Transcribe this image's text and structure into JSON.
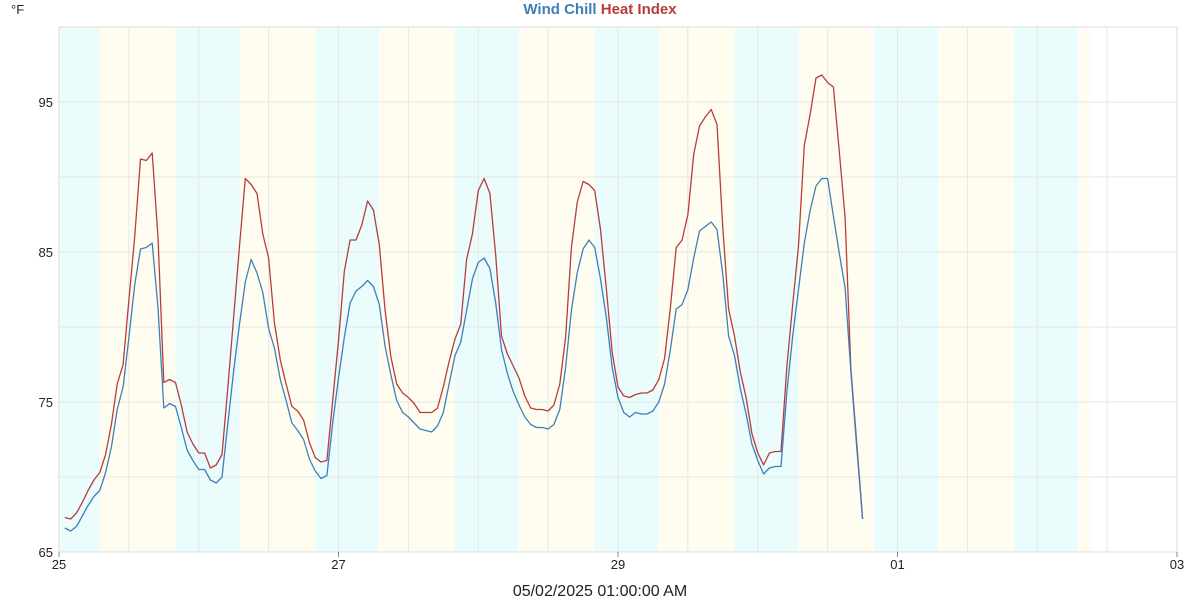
{
  "header": {
    "unit": "°F",
    "footer_text": "05/02/2025 01:00:00 AM"
  },
  "colors": {
    "wind_chill": "#3f7fb8",
    "heat_index": "#b83c3c",
    "day_band": "#fffdf0",
    "night_band": "#ebfcfd",
    "grid": "#e6e6e6"
  },
  "chart_data": {
    "type": "line",
    "title_parts": [
      {
        "text": "Wind Chill",
        "color": "#3f7fb8"
      },
      {
        "text": "Heat Index",
        "color": "#b83c3c"
      }
    ],
    "ylim": [
      65,
      100
    ],
    "yticks": [
      65,
      75,
      85,
      95
    ],
    "xlim": [
      0,
      177
    ],
    "xticks": [
      {
        "label": "25",
        "x": 0
      },
      {
        "label": "27",
        "x": 48
      },
      {
        "label": "29",
        "x": 96
      },
      {
        "label": "01",
        "x": 144
      },
      {
        "label": "03",
        "x": 192
      }
    ],
    "x_unit": "hours since 25 00:00",
    "bands": [
      {
        "start": 0,
        "end": 7,
        "kind": "night"
      },
      {
        "start": 7,
        "end": 20,
        "kind": "day"
      },
      {
        "start": 20,
        "end": 31,
        "kind": "night"
      },
      {
        "start": 31,
        "end": 44,
        "kind": "day"
      },
      {
        "start": 44,
        "end": 55,
        "kind": "night"
      },
      {
        "start": 55,
        "end": 68,
        "kind": "day"
      },
      {
        "start": 68,
        "end": 79,
        "kind": "night"
      },
      {
        "start": 79,
        "end": 92,
        "kind": "day"
      },
      {
        "start": 92,
        "end": 103,
        "kind": "night"
      },
      {
        "start": 103,
        "end": 116,
        "kind": "day"
      },
      {
        "start": 116,
        "end": 127,
        "kind": "night"
      },
      {
        "start": 127,
        "end": 140,
        "kind": "day"
      },
      {
        "start": 140,
        "end": 151,
        "kind": "night"
      },
      {
        "start": 151,
        "end": 164,
        "kind": "day"
      },
      {
        "start": 164,
        "end": 175,
        "kind": "night"
      },
      {
        "start": 175,
        "end": 177,
        "kind": "day"
      }
    ],
    "series": [
      {
        "name": "Heat Index",
        "color": "#b83c3c",
        "points": [
          [
            1,
            67.3
          ],
          [
            2,
            67.2
          ],
          [
            3,
            67.6
          ],
          [
            4,
            68.3
          ],
          [
            5,
            69.1
          ],
          [
            6,
            69.8
          ],
          [
            7,
            70.3
          ],
          [
            8,
            71.5
          ],
          [
            9,
            73.5
          ],
          [
            10,
            76.2
          ],
          [
            11,
            77.5
          ],
          [
            12,
            81.8
          ],
          [
            13,
            86.0
          ],
          [
            14,
            91.2
          ],
          [
            15,
            91.1
          ],
          [
            16,
            91.6
          ],
          [
            17,
            86.0
          ],
          [
            18,
            76.3
          ],
          [
            19,
            76.5
          ],
          [
            20,
            76.3
          ],
          [
            21,
            74.8
          ],
          [
            22,
            73.0
          ],
          [
            23,
            72.2
          ],
          [
            24,
            71.6
          ],
          [
            25,
            71.6
          ],
          [
            26,
            70.6
          ],
          [
            27,
            70.8
          ],
          [
            28,
            71.5
          ],
          [
            29,
            76.0
          ],
          [
            30,
            80.7
          ],
          [
            31,
            85.4
          ],
          [
            32,
            89.9
          ],
          [
            33,
            89.5
          ],
          [
            34,
            88.9
          ],
          [
            35,
            86.2
          ],
          [
            36,
            84.6
          ],
          [
            37,
            80.3
          ],
          [
            38,
            77.8
          ],
          [
            39,
            76.2
          ],
          [
            40,
            74.7
          ],
          [
            41,
            74.4
          ],
          [
            42,
            73.8
          ],
          [
            43,
            72.3
          ],
          [
            44,
            71.3
          ],
          [
            45,
            71.0
          ],
          [
            46,
            71.1
          ],
          [
            47,
            75.1
          ],
          [
            48,
            79.1
          ],
          [
            49,
            83.7
          ],
          [
            50,
            85.8
          ],
          [
            51,
            85.8
          ],
          [
            52,
            86.8
          ],
          [
            53,
            88.4
          ],
          [
            54,
            87.8
          ],
          [
            55,
            85.5
          ],
          [
            56,
            81.1
          ],
          [
            57,
            78.0
          ],
          [
            58,
            76.2
          ],
          [
            59,
            75.6
          ],
          [
            60,
            75.3
          ],
          [
            61,
            74.9
          ],
          [
            62,
            74.3
          ],
          [
            63,
            74.3
          ],
          [
            64,
            74.3
          ],
          [
            65,
            74.6
          ],
          [
            66,
            76.0
          ],
          [
            67,
            77.7
          ],
          [
            68,
            79.2
          ],
          [
            69,
            80.2
          ],
          [
            70,
            84.5
          ],
          [
            71,
            86.2
          ],
          [
            72,
            89.1
          ],
          [
            73,
            89.9
          ],
          [
            74,
            88.9
          ],
          [
            75,
            84.8
          ],
          [
            76,
            79.4
          ],
          [
            77,
            78.2
          ],
          [
            78,
            77.4
          ],
          [
            79,
            76.6
          ],
          [
            80,
            75.4
          ],
          [
            81,
            74.6
          ],
          [
            82,
            74.5
          ],
          [
            83,
            74.5
          ],
          [
            84,
            74.4
          ],
          [
            85,
            74.8
          ],
          [
            86,
            76.2
          ],
          [
            87,
            79.3
          ],
          [
            88,
            85.3
          ],
          [
            89,
            88.3
          ],
          [
            90,
            89.7
          ],
          [
            91,
            89.5
          ],
          [
            92,
            89.1
          ],
          [
            93,
            86.5
          ],
          [
            94,
            82.5
          ],
          [
            95,
            78.3
          ],
          [
            96,
            76.0
          ],
          [
            97,
            75.4
          ],
          [
            98,
            75.3
          ],
          [
            99,
            75.5
          ],
          [
            100,
            75.6
          ],
          [
            101,
            75.6
          ],
          [
            102,
            75.8
          ],
          [
            103,
            76.5
          ],
          [
            104,
            77.9
          ],
          [
            105,
            81.3
          ],
          [
            106,
            85.3
          ],
          [
            107,
            85.8
          ],
          [
            108,
            87.5
          ],
          [
            109,
            91.5
          ],
          [
            110,
            93.4
          ],
          [
            111,
            94.0
          ],
          [
            112,
            94.5
          ],
          [
            113,
            93.5
          ],
          [
            114,
            86.6
          ],
          [
            115,
            81.2
          ],
          [
            116,
            79.4
          ],
          [
            117,
            77.0
          ],
          [
            118,
            75.3
          ],
          [
            119,
            72.9
          ],
          [
            120,
            71.6
          ],
          [
            121,
            70.8
          ],
          [
            122,
            71.6
          ],
          [
            123,
            71.7
          ],
          [
            124,
            71.7
          ],
          [
            125,
            77.4
          ],
          [
            126,
            81.5
          ],
          [
            127,
            85.4
          ],
          [
            128,
            92.1
          ],
          [
            129,
            94.2
          ],
          [
            130,
            96.6
          ],
          [
            131,
            96.8
          ],
          [
            132,
            96.3
          ],
          [
            133,
            96.0
          ],
          [
            134,
            91.7
          ],
          [
            135,
            87.3
          ],
          [
            136,
            77.2
          ],
          [
            137,
            72.3
          ],
          [
            138,
            67.2
          ]
        ]
      },
      {
        "name": "Wind Chill",
        "color": "#3f7fb8",
        "points": [
          [
            1,
            66.6
          ],
          [
            2,
            66.4
          ],
          [
            3,
            66.7
          ],
          [
            4,
            67.4
          ],
          [
            5,
            68.1
          ],
          [
            6,
            68.7
          ],
          [
            7,
            69.1
          ],
          [
            8,
            70.3
          ],
          [
            9,
            72.0
          ],
          [
            10,
            74.5
          ],
          [
            11,
            76.0
          ],
          [
            12,
            79.3
          ],
          [
            13,
            82.8
          ],
          [
            14,
            85.2
          ],
          [
            15,
            85.3
          ],
          [
            16,
            85.6
          ],
          [
            17,
            81.3
          ],
          [
            18,
            74.6
          ],
          [
            19,
            74.9
          ],
          [
            20,
            74.7
          ],
          [
            21,
            73.3
          ],
          [
            22,
            71.8
          ],
          [
            23,
            71.1
          ],
          [
            24,
            70.5
          ],
          [
            25,
            70.5
          ],
          [
            26,
            69.8
          ],
          [
            27,
            69.6
          ],
          [
            28,
            70.0
          ],
          [
            29,
            73.6
          ],
          [
            30,
            77.1
          ],
          [
            31,
            80.2
          ],
          [
            32,
            83.0
          ],
          [
            33,
            84.5
          ],
          [
            34,
            83.6
          ],
          [
            35,
            82.3
          ],
          [
            36,
            79.9
          ],
          [
            37,
            78.6
          ],
          [
            38,
            76.5
          ],
          [
            39,
            75.1
          ],
          [
            40,
            73.6
          ],
          [
            41,
            73.1
          ],
          [
            42,
            72.5
          ],
          [
            43,
            71.2
          ],
          [
            44,
            70.4
          ],
          [
            45,
            69.9
          ],
          [
            46,
            70.1
          ],
          [
            47,
            73.6
          ],
          [
            48,
            76.6
          ],
          [
            49,
            79.3
          ],
          [
            50,
            81.6
          ],
          [
            51,
            82.4
          ],
          [
            52,
            82.7
          ],
          [
            53,
            83.1
          ],
          [
            54,
            82.7
          ],
          [
            55,
            81.5
          ],
          [
            56,
            78.7
          ],
          [
            57,
            76.8
          ],
          [
            58,
            75.1
          ],
          [
            59,
            74.3
          ],
          [
            60,
            74.0
          ],
          [
            61,
            73.6
          ],
          [
            62,
            73.2
          ],
          [
            63,
            73.1
          ],
          [
            64,
            73.0
          ],
          [
            65,
            73.4
          ],
          [
            66,
            74.3
          ],
          [
            67,
            76.2
          ],
          [
            68,
            78.1
          ],
          [
            69,
            79.0
          ],
          [
            70,
            81.1
          ],
          [
            71,
            83.2
          ],
          [
            72,
            84.3
          ],
          [
            73,
            84.6
          ],
          [
            74,
            83.9
          ],
          [
            75,
            81.6
          ],
          [
            76,
            78.5
          ],
          [
            77,
            76.9
          ],
          [
            78,
            75.7
          ],
          [
            79,
            74.8
          ],
          [
            80,
            74.0
          ],
          [
            81,
            73.5
          ],
          [
            82,
            73.3
          ],
          [
            83,
            73.3
          ],
          [
            84,
            73.2
          ],
          [
            85,
            73.5
          ],
          [
            86,
            74.5
          ],
          [
            87,
            77.3
          ],
          [
            88,
            81.1
          ],
          [
            89,
            83.6
          ],
          [
            90,
            85.2
          ],
          [
            91,
            85.8
          ],
          [
            92,
            85.3
          ],
          [
            93,
            83.2
          ],
          [
            94,
            80.6
          ],
          [
            95,
            77.3
          ],
          [
            96,
            75.3
          ],
          [
            97,
            74.3
          ],
          [
            98,
            74.0
          ],
          [
            99,
            74.3
          ],
          [
            100,
            74.2
          ],
          [
            101,
            74.2
          ],
          [
            102,
            74.4
          ],
          [
            103,
            75.0
          ],
          [
            104,
            76.2
          ],
          [
            105,
            78.5
          ],
          [
            106,
            81.2
          ],
          [
            107,
            81.5
          ],
          [
            108,
            82.5
          ],
          [
            109,
            84.6
          ],
          [
            110,
            86.4
          ],
          [
            111,
            86.7
          ],
          [
            112,
            87.0
          ],
          [
            113,
            86.5
          ],
          [
            114,
            83.5
          ],
          [
            115,
            79.4
          ],
          [
            116,
            78.1
          ],
          [
            117,
            75.9
          ],
          [
            118,
            74.2
          ],
          [
            119,
            72.2
          ],
          [
            120,
            71.1
          ],
          [
            121,
            70.2
          ],
          [
            122,
            70.6
          ],
          [
            123,
            70.7
          ],
          [
            124,
            70.7
          ],
          [
            125,
            75.7
          ],
          [
            126,
            79.4
          ],
          [
            127,
            82.5
          ],
          [
            128,
            85.6
          ],
          [
            129,
            87.8
          ],
          [
            130,
            89.4
          ],
          [
            131,
            89.9
          ],
          [
            132,
            89.9
          ],
          [
            133,
            87.4
          ],
          [
            134,
            84.9
          ],
          [
            135,
            82.6
          ],
          [
            136,
            77.0
          ],
          [
            137,
            72.0
          ],
          [
            138,
            67.2
          ]
        ]
      }
    ]
  }
}
